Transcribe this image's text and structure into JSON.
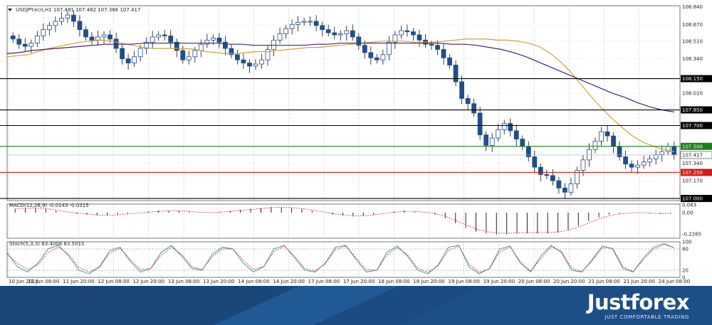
{
  "chart_data": [
    {
      "type": "candlestick",
      "title": "USDJPY.ecn,H1  107.481 107.482 107.366 107.417",
      "symbol": "USDJPY.ecn,H1",
      "ohlc_header": "107.481 107.482 107.366 107.417",
      "ylim": [
        106.98,
        108.85
      ],
      "y_ticks": [
        "108.840",
        "108.670",
        "108.510",
        "108.340",
        "108.150",
        "108.010",
        "107.850",
        "107.700",
        "107.500",
        "107.417",
        "107.340",
        "107.250",
        "107.170",
        "107.000"
      ],
      "x_ticks": [
        "10 Jun 2019",
        "11 Jun 08:00",
        "11 Jun 20:00",
        "12 Jun 08:00",
        "12 Jun 20:00",
        "13 Jun 08:00",
        "13 Jun 20:00",
        "14 Jun 08:00",
        "14 Jun 20:00",
        "17 Jun 08:00",
        "17 Jun 20:00",
        "18 Jun 08:00",
        "18 Jun 20:00",
        "19 Jun 08:00",
        "19 Jun 20:00",
        "20 Jun 08:00",
        "20 Jun 20:00",
        "21 Jun 08:00",
        "21 Jun 20:00",
        "24 Jun 08:00"
      ],
      "current_price": 107.417,
      "price_path": [
        108.53,
        108.48,
        108.46,
        108.49,
        108.56,
        108.62,
        108.66,
        108.7,
        108.73,
        108.76,
        108.7,
        108.62,
        108.55,
        108.52,
        108.55,
        108.57,
        108.53,
        108.44,
        108.34,
        108.3,
        108.36,
        108.44,
        108.5,
        108.55,
        108.57,
        108.56,
        108.5,
        108.42,
        108.33,
        108.36,
        108.42,
        108.48,
        108.52,
        108.54,
        108.5,
        108.44,
        108.38,
        108.33,
        108.3,
        108.27,
        108.29,
        108.33,
        108.43,
        108.52,
        108.58,
        108.63,
        108.67,
        108.69,
        108.7,
        108.7,
        108.66,
        108.62,
        108.59,
        108.57,
        108.58,
        108.61,
        108.55,
        108.47,
        108.4,
        108.35,
        108.33,
        108.38,
        108.5,
        108.57,
        108.61,
        108.6,
        108.57,
        108.52,
        108.48,
        108.47,
        108.43,
        108.35,
        108.28,
        108.12,
        107.96,
        107.91,
        107.82,
        107.61,
        107.51,
        107.58,
        107.66,
        107.72,
        107.65,
        107.57,
        107.5,
        107.4,
        107.3,
        107.23,
        107.22,
        107.17,
        107.1,
        107.06,
        107.14,
        107.27,
        107.37,
        107.47,
        107.55,
        107.64,
        107.6,
        107.5,
        107.4,
        107.33,
        107.3,
        107.32,
        107.35,
        107.38,
        107.42,
        107.45,
        107.5,
        107.42
      ],
      "indicator_lines": {
        "ma_fast": {
          "color": "#c9a33a",
          "path": [
            108.36,
            108.37,
            108.38,
            108.41,
            108.44,
            108.46,
            108.48,
            108.5,
            108.51,
            108.52,
            108.51,
            108.49,
            108.47,
            108.45,
            108.44,
            108.44,
            108.44,
            108.44,
            108.43,
            108.41,
            108.4,
            108.39,
            108.39,
            108.4,
            108.41,
            108.41,
            108.42,
            108.43,
            108.44,
            108.45,
            108.45,
            108.46,
            108.47,
            108.48,
            108.49,
            108.5,
            108.51,
            108.51,
            108.51,
            108.5,
            108.5,
            108.5,
            108.51,
            108.52,
            108.53,
            108.53,
            108.53,
            108.52,
            108.52,
            108.51,
            108.49,
            108.46,
            108.4,
            108.32,
            108.22,
            108.1,
            107.98,
            107.87,
            107.77,
            107.68,
            107.6,
            107.54,
            107.5,
            107.47,
            107.45
          ]
        },
        "ma_slow": {
          "color": "#4a1f6e",
          "path": [
            108.39,
            108.4,
            108.42,
            108.43,
            108.44,
            108.45,
            108.46,
            108.47,
            108.48,
            108.48,
            108.48,
            108.49,
            108.49,
            108.49,
            108.49,
            108.49,
            108.49,
            108.49,
            108.48,
            108.48,
            108.47,
            108.47,
            108.47,
            108.47,
            108.47,
            108.48,
            108.48,
            108.49,
            108.49,
            108.49,
            108.49,
            108.49,
            108.49,
            108.49,
            108.49,
            108.49,
            108.48,
            108.48,
            108.47,
            108.45,
            108.43,
            108.4,
            108.36,
            108.31,
            108.26,
            108.21,
            108.16,
            108.11,
            108.06,
            108.01,
            107.97,
            107.92,
            107.88,
            107.85,
            107.83
          ]
        }
      },
      "horizontal_levels": [
        {
          "value": 108.15,
          "label": "108.150",
          "color": "#000000"
        },
        {
          "value": 107.85,
          "label": "107.850",
          "color": "#000000"
        },
        {
          "value": 107.7,
          "label": "107.700",
          "color": "#000000"
        },
        {
          "value": 107.5,
          "label": "107.500",
          "color": "#1a7f1a"
        },
        {
          "value": 107.25,
          "label": "107.250",
          "color": "#d31a1a"
        },
        {
          "value": 107.0,
          "label": "107.000",
          "color": "#000000"
        }
      ]
    },
    {
      "type": "bar",
      "title": "MACD(12,26,9) -0.0143 -0.0315",
      "ylim": [
        -0.27,
        0.09
      ],
      "y_ticks": [
        "0.083",
        "0.00",
        "-0.2265"
      ],
      "values": [
        0.04,
        0.05,
        0.05,
        0.04,
        0.02,
        0.0,
        -0.01,
        -0.02,
        -0.03,
        -0.03,
        -0.02,
        -0.01,
        0.0,
        0.01,
        0.02,
        0.02,
        0.02,
        0.01,
        0.0,
        0.0,
        0.01,
        0.02,
        0.03,
        0.04,
        0.05,
        0.06,
        0.06,
        0.05,
        0.04,
        0.02,
        0.0,
        -0.02,
        -0.03,
        -0.04,
        -0.03,
        -0.02,
        0.0,
        0.01,
        0.02,
        0.01,
        0.0,
        -0.02,
        -0.06,
        -0.11,
        -0.16,
        -0.2,
        -0.22,
        -0.23,
        -0.23,
        -0.22,
        -0.22,
        -0.22,
        -0.22,
        -0.21,
        -0.18,
        -0.14,
        -0.09,
        -0.05,
        -0.02,
        -0.01,
        0.0,
        0.0,
        -0.01,
        -0.01,
        -0.01
      ]
    },
    {
      "type": "line",
      "title": "Stoch(5,3,3) 83.4008 83.5015",
      "ylim": [
        0,
        100
      ],
      "y_ticks": [
        "100",
        "80",
        "20",
        "0"
      ],
      "series": [
        {
          "color": "#2f8f8f",
          "values": [
            70,
            30,
            15,
            40,
            80,
            90,
            60,
            20,
            10,
            30,
            75,
            85,
            45,
            15,
            25,
            70,
            90,
            60,
            25,
            20,
            65,
            85,
            80,
            40,
            15,
            30,
            80,
            90,
            55,
            20,
            15,
            40,
            85,
            90,
            50,
            15,
            20,
            70,
            88,
            60,
            20,
            10,
            35,
            85,
            90,
            30,
            10,
            25,
            80,
            88,
            40,
            15,
            60,
            90,
            70,
            20,
            15,
            50,
            88,
            80,
            25,
            15,
            55,
            85,
            95,
            83
          ]
        },
        {
          "color": "#c0392b",
          "values": [
            65,
            40,
            22,
            35,
            70,
            85,
            65,
            28,
            15,
            28,
            68,
            82,
            50,
            22,
            25,
            62,
            85,
            65,
            30,
            22,
            58,
            80,
            80,
            48,
            22,
            30,
            72,
            88,
            60,
            25,
            18,
            38,
            78,
            88,
            55,
            22,
            20,
            62,
            84,
            64,
            26,
            14,
            32,
            76,
            88,
            38,
            14,
            24,
            72,
            86,
            45,
            18,
            52,
            86,
            74,
            26,
            16,
            46,
            84,
            82,
            30,
            16,
            50,
            80,
            92,
            83
          ]
        }
      ]
    }
  ]
}
